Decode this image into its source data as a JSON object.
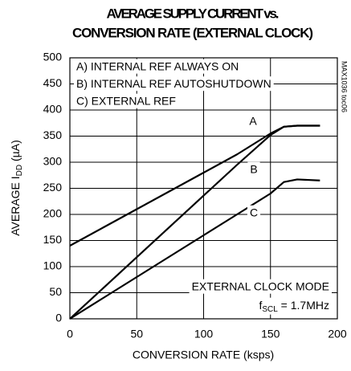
{
  "chart_data": {
    "type": "line",
    "title": [
      "AVERAGE SUPPLY CURRENT vs.",
      "CONVERSION RATE (EXTERNAL CLOCK)"
    ],
    "xlabel": "CONVERSION RATE (ksps)",
    "ylabel": [
      "AVERAGE I",
      "DD",
      " (µA)"
    ],
    "x": [
      0,
      25,
      50,
      75,
      100,
      125,
      150,
      160,
      170,
      187
    ],
    "series": [
      {
        "name": "A",
        "color": "#000000",
        "values": [
          140,
          175,
          210,
          245,
          280,
          315,
          355,
          368,
          370,
          370
        ]
      },
      {
        "name": "B",
        "color": "#000000",
        "values": [
          0,
          59,
          118,
          177,
          236,
          295,
          352,
          368,
          370,
          370
        ]
      },
      {
        "name": "C",
        "color": "#000000",
        "values": [
          0,
          40,
          80,
          120,
          160,
          200,
          240,
          262,
          267,
          265
        ]
      }
    ],
    "legend_lines": [
      "A) INTERNAL REF ALWAYS ON",
      "B) INTERNAL REF AUTOSHUTDOWN",
      "C) EXTERNAL REF"
    ],
    "annotations": [
      "EXTERNAL CLOCK MODE"
    ],
    "clock_note": [
      "f",
      "SCL",
      " = 1.7MHz"
    ],
    "figure_id": "MAX1036 toc06",
    "xlim": [
      0,
      200
    ],
    "xticks": [
      0,
      50,
      100,
      150,
      200
    ],
    "ylim": [
      0,
      500
    ],
    "yticks": [
      0,
      50,
      100,
      150,
      200,
      250,
      300,
      350,
      400,
      450,
      500
    ],
    "grid": true
  }
}
